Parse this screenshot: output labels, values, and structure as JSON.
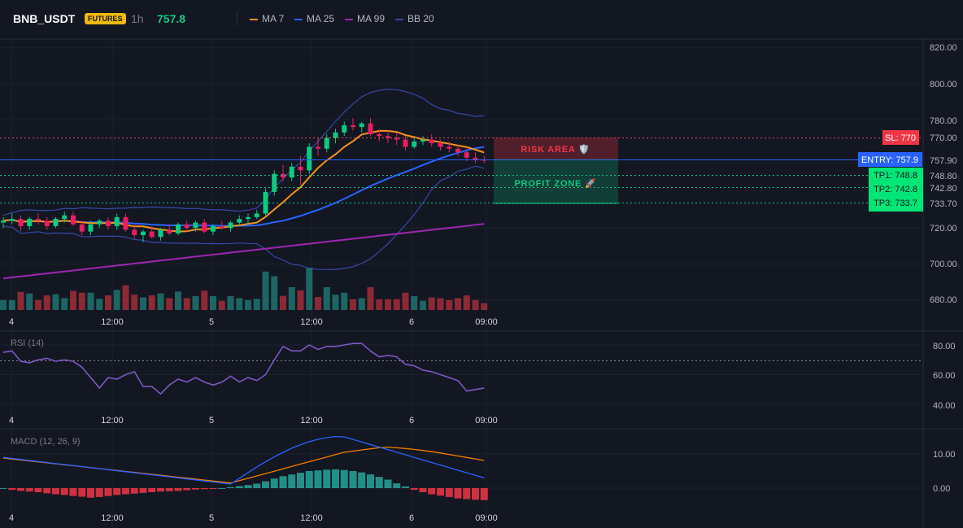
{
  "header": {
    "symbol": "BNB_USDT",
    "badge": "FUTURES",
    "timeframe": "1h",
    "last_price": "757.8",
    "legend": [
      {
        "label": "MA 7",
        "color": "#f7931a"
      },
      {
        "label": "MA 25",
        "color": "#2962ff"
      },
      {
        "label": "MA 99",
        "color": "#9c27b0"
      },
      {
        "label": "BB 20",
        "color": "#3549a8"
      }
    ]
  },
  "colors": {
    "background": "#131722",
    "grid": "#1e222d",
    "up": "#26a69a",
    "up_bright": "#0ecb81",
    "down": "#f23645",
    "down_candle": "#e91e63",
    "ma7": "#f7931a",
    "ma25": "#2962ff",
    "ma99": "#9c27b0",
    "bb": "#3549a8",
    "rsi": "#7e57c2",
    "macd": "#2962ff",
    "signal": "#f57c00",
    "sl": "#f6465d",
    "entry": "#2962ff",
    "tp": "#0ecb81"
  },
  "price_axis": [
    "820.00",
    "800.00",
    "780.00",
    "770.00",
    "757.90",
    "748.80",
    "742.80",
    "733.70",
    "720.00",
    "700.00",
    "680.00"
  ],
  "time_axis": [
    "4",
    "12:00",
    "5",
    "12:00",
    "6",
    "09:00"
  ],
  "levels": {
    "sl_tag": "SL: 770",
    "entry_tag": "ENTRY: 757.9",
    "tp1_tag": "TP1: 748.8",
    "tp2_tag": "TP2: 742.8",
    "tp3_tag": "TP3: 733.7"
  },
  "zones": {
    "risk_label": "RISK AREA 🛡️",
    "profit_label": "PROFIT ZONE 🚀"
  },
  "rsi": {
    "title": "RSI (14)",
    "axis": [
      "80.00",
      "60.00",
      "40.00"
    ],
    "values": [
      75,
      76,
      69,
      68,
      70,
      71,
      69,
      70,
      69,
      65,
      58,
      51,
      58,
      57,
      60,
      62,
      52,
      52,
      47,
      53,
      57,
      55,
      58,
      55,
      53,
      55,
      59,
      55,
      58,
      56,
      60,
      70,
      79,
      76,
      76,
      80,
      77,
      79,
      79,
      80,
      81,
      81,
      76,
      72,
      73,
      72,
      67,
      66,
      63,
      62,
      60,
      58,
      56,
      49,
      50,
      51
    ]
  },
  "macd": {
    "title": "MACD (12, 26, 9)",
    "axis": [
      "10.00",
      "0.00"
    ]
  },
  "chart_data": [
    {
      "type": "candlestick",
      "interval": "1h",
      "x_labels": [
        "4",
        "12:00",
        "5",
        "12:00",
        "6",
        "09:00"
      ],
      "ylim": [
        670,
        830
      ],
      "ohlc": [
        [
          723,
          726,
          720,
          724
        ],
        [
          724,
          728,
          722,
          725
        ],
        [
          725,
          727,
          718,
          721
        ],
        [
          721,
          726,
          719,
          725
        ],
        [
          725,
          728,
          722,
          724
        ],
        [
          724,
          726,
          719,
          721
        ],
        [
          721,
          726,
          720,
          725
        ],
        [
          725,
          729,
          723,
          727
        ],
        [
          727,
          729,
          721,
          722
        ],
        [
          722,
          724,
          716,
          718
        ],
        [
          718,
          724,
          716,
          722
        ],
        [
          722,
          725,
          720,
          724
        ],
        [
          724,
          726,
          719,
          721
        ],
        [
          721,
          728,
          719,
          726
        ],
        [
          726,
          728,
          718,
          719
        ],
        [
          719,
          722,
          714,
          716
        ],
        [
          716,
          719,
          712,
          718
        ],
        [
          718,
          721,
          714,
          715
        ],
        [
          715,
          720,
          713,
          719
        ],
        [
          719,
          722,
          716,
          717
        ],
        [
          717,
          723,
          716,
          722
        ],
        [
          722,
          724,
          718,
          720
        ],
        [
          720,
          724,
          718,
          723
        ],
        [
          723,
          725,
          717,
          718
        ],
        [
          718,
          722,
          716,
          721
        ],
        [
          721,
          724,
          719,
          720
        ],
        [
          720,
          724,
          718,
          723
        ],
        [
          723,
          727,
          721,
          725
        ],
        [
          725,
          728,
          722,
          726
        ],
        [
          726,
          730,
          725,
          728
        ],
        [
          728,
          742,
          727,
          740
        ],
        [
          740,
          752,
          738,
          750
        ],
        [
          750,
          755,
          746,
          748
        ],
        [
          748,
          756,
          746,
          754
        ],
        [
          754,
          760,
          744,
          752
        ],
        [
          752,
          767,
          750,
          765
        ],
        [
          765,
          770,
          760,
          764
        ],
        [
          764,
          772,
          762,
          770
        ],
        [
          770,
          775,
          767,
          773
        ],
        [
          773,
          779,
          771,
          777
        ],
        [
          777,
          781,
          774,
          776
        ],
        [
          776,
          779,
          773,
          778
        ],
        [
          778,
          781,
          771,
          772
        ],
        [
          772,
          775,
          768,
          771
        ],
        [
          771,
          774,
          767,
          770
        ],
        [
          770,
          773,
          766,
          769
        ],
        [
          769,
          771,
          763,
          765
        ],
        [
          765,
          770,
          764,
          768
        ],
        [
          768,
          771,
          766,
          769
        ],
        [
          769,
          772,
          765,
          767
        ],
        [
          767,
          769,
          763,
          765
        ],
        [
          765,
          768,
          762,
          764
        ],
        [
          764,
          766,
          760,
          762
        ],
        [
          762,
          764,
          757,
          759
        ],
        [
          759,
          762,
          756,
          758
        ],
        [
          758,
          760,
          756,
          757.8
        ]
      ],
      "volume_scale": "relative"
    },
    {
      "type": "histogram",
      "name": "MACD (12, 26, 9)",
      "ylim": [
        -8,
        18
      ],
      "values": [
        0,
        -0.5,
        -0.8,
        -1,
        -1.2,
        -1.5,
        -1.8,
        -2,
        -2.3,
        -2.5,
        -2.8,
        -2.6,
        -2.3,
        -2,
        -1.8,
        -1.6,
        -1.4,
        -1.2,
        -1,
        -0.9,
        -0.8,
        -0.6,
        -0.4,
        -0.3,
        -0.2,
        0,
        0.3,
        0.6,
        0.9,
        1.3,
        2,
        2.8,
        3.5,
        4,
        4.5,
        5,
        5.2,
        5.4,
        5.5,
        5.3,
        5,
        4.6,
        4,
        3.3,
        2.5,
        1.4,
        0.5,
        -0.5,
        -1.2,
        -1.8,
        -2.2,
        -2.6,
        -3,
        -3.2,
        -3.4,
        -3.5
      ]
    }
  ]
}
